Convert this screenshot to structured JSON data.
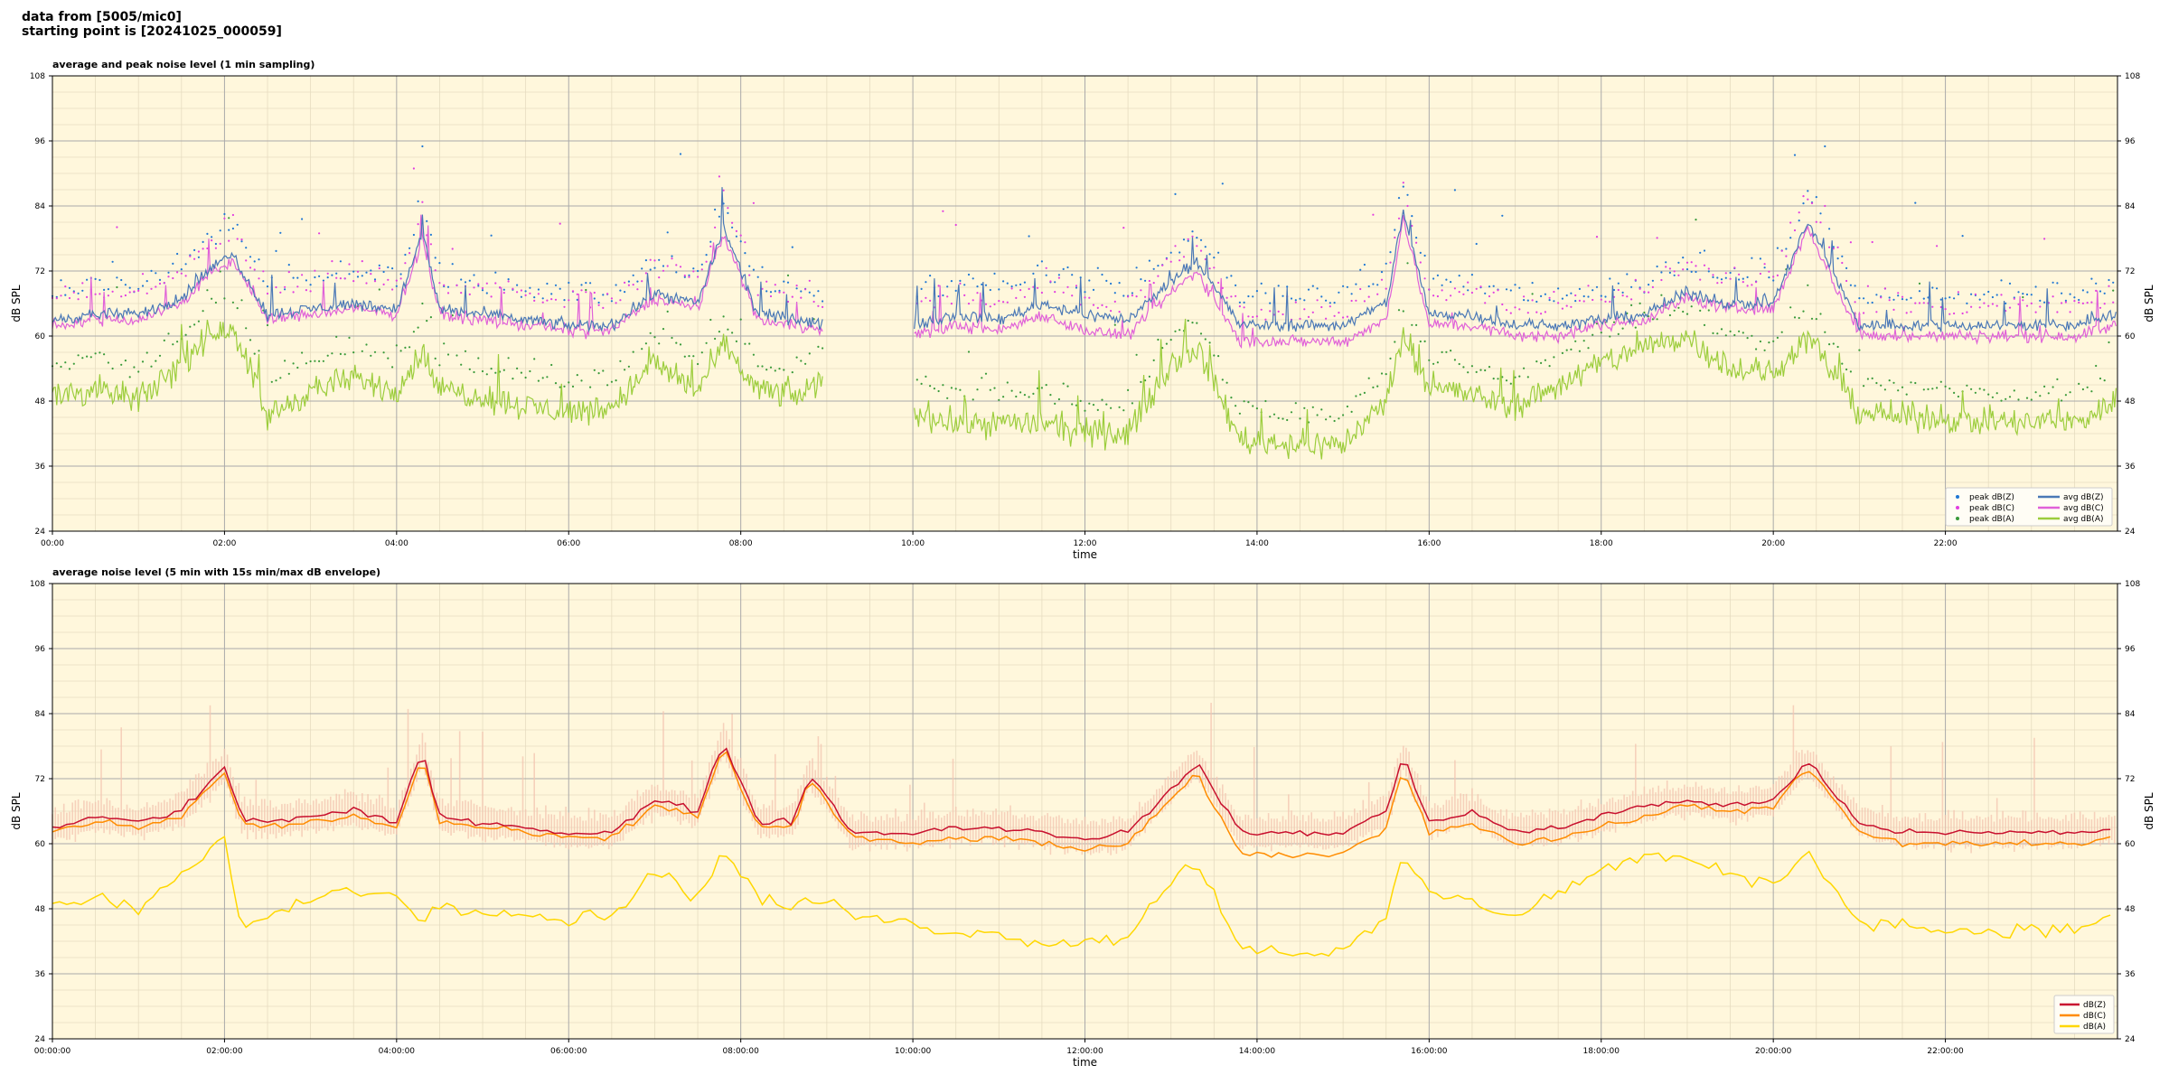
{
  "header": {
    "line1": "data from [5005/mic0]",
    "line2": "starting point is [20241025_000059]"
  },
  "colors": {
    "plot_bg": "#fff7dc",
    "grid_major": "#aaaaaa",
    "grid_minor": "#e6dcc0",
    "peakZ": "#1f77d4",
    "peakC": "#e23ee0",
    "peakA": "#3a9a3a",
    "avgZ": "#4a78b6",
    "avgC": "#e061d8",
    "avgA": "#9ccd3c",
    "dbZ": "#c8102e",
    "dbC": "#ff8c00",
    "dbA": "#ffd700",
    "envelope": "#f3c4b0"
  },
  "chart_data": [
    {
      "type": "line",
      "title": "average and peak noise level (1 min sampling)",
      "xlabel": "time",
      "ylabel": "dB SPL",
      "ylim": [
        24,
        108
      ],
      "yticks": [
        24,
        36,
        48,
        60,
        72,
        84,
        96,
        108
      ],
      "xlim": [
        0,
        24
      ],
      "xtick_hours": [
        0,
        2,
        4,
        6,
        8,
        10,
        12,
        14,
        16,
        18,
        20,
        22
      ],
      "xtick_labels": [
        "00:00",
        "02:00",
        "04:00",
        "06:00",
        "08:00",
        "10:00",
        "12:00",
        "14:00",
        "16:00",
        "18:00",
        "20:00",
        "22:00"
      ],
      "grid": true,
      "legend_position": "bottom-right",
      "legend": [
        {
          "label": "peak dB(Z)",
          "kind": "dot",
          "color_key": "peakZ"
        },
        {
          "label": "peak dB(C)",
          "kind": "dot",
          "color_key": "peakC"
        },
        {
          "label": "peak dB(A)",
          "kind": "dot",
          "color_key": "peakA"
        },
        {
          "label": "avg dB(Z)",
          "kind": "line",
          "color_key": "avgZ"
        },
        {
          "label": "avg dB(C)",
          "kind": "line",
          "color_key": "avgC"
        },
        {
          "label": "avg dB(A)",
          "kind": "line",
          "color_key": "avgA"
        }
      ],
      "series_profile": {
        "hours": [
          0,
          0.5,
          1,
          1.5,
          1.8,
          2.1,
          2.5,
          3,
          3.5,
          4,
          4.3,
          4.5,
          5,
          5.5,
          6,
          6.5,
          7,
          7.5,
          7.8,
          8.2,
          8.7,
          8.95,
          9.3,
          10,
          10.5,
          11,
          11.5,
          12,
          12.5,
          13,
          13.3,
          13.8,
          14.5,
          15,
          15.5,
          15.7,
          16,
          16.5,
          17,
          17.5,
          18,
          18.5,
          19,
          19.5,
          20,
          20.4,
          21,
          21.1,
          21.5,
          22,
          22.5,
          23,
          23.5,
          24
        ],
        "avgZ": [
          63,
          64,
          64,
          67,
          72,
          75,
          64,
          65,
          66,
          65,
          79,
          65,
          64,
          63,
          62,
          62,
          68,
          66,
          80,
          64,
          63,
          62,
          null,
          62,
          64,
          63,
          66,
          64,
          63,
          70,
          74,
          62,
          62,
          62,
          66,
          83,
          64,
          64,
          62,
          62,
          63,
          64,
          68,
          66,
          66,
          81,
          62,
          62,
          62,
          62,
          62,
          62,
          62,
          64
        ],
        "avgC": [
          62,
          63,
          63,
          66,
          71,
          74,
          63,
          64,
          65,
          64,
          78,
          64,
          63,
          62,
          61,
          61,
          67,
          65,
          79,
          63,
          62,
          61,
          null,
          60,
          62,
          61,
          64,
          61,
          60,
          68,
          72,
          59,
          59,
          59,
          63,
          82,
          62,
          62,
          60,
          60,
          62,
          63,
          67,
          65,
          65,
          80,
          60,
          60,
          60,
          60,
          60,
          60,
          60,
          62
        ],
        "avgA": [
          49,
          50,
          48,
          55,
          60,
          62,
          45,
          50,
          52,
          50,
          57,
          50,
          49,
          47,
          46,
          47,
          55,
          50,
          58,
          50,
          49,
          52,
          null,
          46,
          44,
          44,
          44,
          42,
          42,
          55,
          58,
          41,
          40,
          40,
          48,
          60,
          51,
          49,
          47,
          51,
          55,
          58,
          60,
          54,
          53,
          60,
          46,
          46,
          45,
          45,
          44,
          44,
          44,
          48
        ],
        "peak_offset_db": 4,
        "peak_max_observed": 95
      }
    },
    {
      "type": "line",
      "title": "average noise level (5 min with 15s min/max dB envelope)",
      "xlabel": "time",
      "ylabel": "dB SPL",
      "ylim": [
        24,
        108
      ],
      "yticks": [
        24,
        36,
        48,
        60,
        72,
        84,
        96,
        108
      ],
      "xlim": [
        0,
        24
      ],
      "xtick_hours": [
        0,
        2,
        4,
        6,
        8,
        10,
        12,
        14,
        16,
        18,
        20,
        22
      ],
      "xtick_labels": [
        "00:00:00",
        "02:00:00",
        "04:00:00",
        "06:00:00",
        "08:00:00",
        "10:00:00",
        "12:00:00",
        "14:00:00",
        "16:00:00",
        "18:00:00",
        "20:00:00",
        "22:00:00"
      ],
      "grid": true,
      "legend_position": "bottom-right",
      "legend": [
        {
          "label": "dB(Z)",
          "kind": "line",
          "color_key": "dbZ"
        },
        {
          "label": "dB(C)",
          "kind": "line",
          "color_key": "dbC"
        },
        {
          "label": "dB(A)",
          "kind": "line",
          "color_key": "dbA"
        }
      ],
      "series_profile": {
        "hours": [
          0,
          0.5,
          1,
          1.5,
          1.8,
          2.0,
          2.2,
          2.5,
          3,
          3.5,
          4,
          4.3,
          4.5,
          5,
          5.5,
          6,
          6.5,
          7,
          7.5,
          7.8,
          8.2,
          8.6,
          8.8,
          9.3,
          10,
          10.5,
          11,
          11.5,
          12,
          12.5,
          13,
          13.3,
          13.8,
          14.5,
          15,
          15.5,
          15.7,
          16,
          16.5,
          17,
          17.5,
          18,
          18.5,
          19,
          19.5,
          20,
          20.4,
          21,
          21.5,
          22,
          22.5,
          23,
          23.5,
          24
        ],
        "dbZ": [
          63,
          65,
          64,
          66,
          71,
          74,
          65,
          64,
          65,
          66,
          64,
          77,
          65,
          64,
          63,
          62,
          62,
          68,
          66,
          79,
          64,
          64,
          73,
          62,
          62,
          63,
          63,
          62,
          61,
          62,
          70,
          75,
          62,
          62,
          62,
          66,
          76,
          64,
          66,
          62,
          63,
          65,
          67,
          68,
          67,
          68,
          75,
          64,
          62,
          62,
          62,
          62,
          62,
          63
        ],
        "dbC": [
          62,
          64,
          63,
          65,
          70,
          73,
          64,
          63,
          64,
          65,
          63,
          76,
          64,
          63,
          62,
          61,
          61,
          67,
          65,
          78,
          63,
          63,
          72,
          61,
          60,
          61,
          61,
          60,
          59,
          60,
          68,
          73,
          58,
          58,
          58,
          63,
          74,
          62,
          64,
          60,
          61,
          63,
          65,
          67,
          66,
          67,
          74,
          62,
          60,
          60,
          60,
          60,
          60,
          61
        ],
        "dbA": [
          48,
          50,
          48,
          54,
          58,
          61,
          45,
          46,
          50,
          52,
          50,
          46,
          49,
          48,
          47,
          46,
          47,
          55,
          50,
          59,
          50,
          48,
          50,
          47,
          45,
          44,
          43,
          42,
          42,
          43,
          53,
          57,
          41,
          40,
          40,
          46,
          58,
          51,
          49,
          47,
          51,
          55,
          58,
          57,
          54,
          53,
          58,
          46,
          45,
          44,
          44,
          44,
          44,
          48
        ],
        "envelope_max_observed": 86
      }
    }
  ]
}
